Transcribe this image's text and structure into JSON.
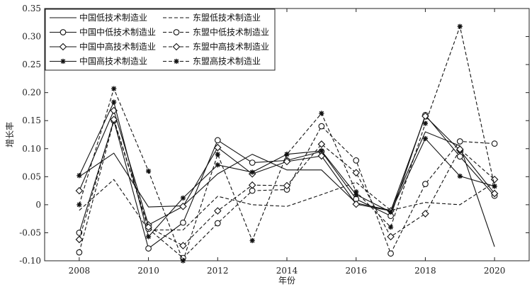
{
  "chart_data": {
    "type": "line",
    "title": "",
    "xlabel": "年份",
    "ylabel": "增长率",
    "xlim": [
      2007,
      2021
    ],
    "ylim": [
      -0.1,
      0.35
    ],
    "xticks": [
      2008,
      2010,
      2012,
      2014,
      2016,
      2018,
      2020
    ],
    "yticks": [
      -0.1,
      -0.05,
      0,
      0.05,
      0.1,
      0.15,
      0.2,
      0.25,
      0.3,
      0.35
    ],
    "ytick_labels": [
      "-0.10",
      "-0.05",
      "0",
      "0.05",
      "0.10",
      "0.15",
      "0.20",
      "0.25",
      "0.30",
      "0.35"
    ],
    "grid": false,
    "legend_position": "top-left",
    "x": [
      2008,
      2009,
      2010,
      2011,
      2012,
      2013,
      2014,
      2015,
      2016,
      2017,
      2018,
      2019,
      2020
    ],
    "series": [
      {
        "name": "中国低技术制造业",
        "dash": "solid",
        "marker": "none",
        "values": [
          0.05,
          0.092,
          -0.004,
          -0.002,
          0.055,
          0.09,
          0.062,
          0.062,
          0.003,
          -0.01,
          0.13,
          0.105,
          -0.075
        ]
      },
      {
        "name": "中国中低技术制造业",
        "dash": "solid",
        "marker": "circle",
        "values": [
          -0.05,
          0.15,
          -0.078,
          -0.032,
          0.115,
          0.075,
          0.079,
          0.095,
          0.01,
          -0.02,
          0.16,
          0.086,
          0.016
        ]
      },
      {
        "name": "中国中高技术制造业",
        "dash": "solid",
        "marker": "diamond",
        "values": [
          0.025,
          0.168,
          -0.036,
          -0.003,
          0.102,
          0.055,
          0.077,
          0.087,
          0.001,
          -0.011,
          0.158,
          0.097,
          0.02
        ]
      },
      {
        "name": "中国高技术制造业",
        "dash": "solid",
        "marker": "star",
        "values": [
          0.052,
          0.183,
          -0.057,
          0.012,
          0.071,
          0.058,
          0.09,
          0.096,
          0.018,
          -0.013,
          0.118,
          0.051,
          0.033
        ]
      },
      {
        "name": "东盟低技术制造业",
        "dash": "dashed",
        "marker": "none",
        "values": [
          -0.01,
          0.045,
          -0.045,
          -0.045,
          0.015,
          0.0,
          -0.003,
          0.018,
          0.04,
          -0.01,
          0.004,
          0.0,
          0.04
        ]
      },
      {
        "name": "东盟中低技术制造业",
        "dash": "dashed",
        "marker": "circle",
        "values": [
          -0.085,
          0.15,
          -0.043,
          -0.095,
          -0.033,
          0.025,
          0.027,
          0.14,
          0.079,
          -0.087,
          0.037,
          0.113,
          0.109
        ]
      },
      {
        "name": "东盟中高技术制造业",
        "dash": "dashed",
        "marker": "diamond",
        "values": [
          -0.062,
          0.152,
          -0.04,
          -0.073,
          -0.011,
          0.035,
          0.034,
          0.108,
          0.057,
          -0.057,
          -0.016,
          0.099,
          0.045
        ]
      },
      {
        "name": "东盟高技术制造业",
        "dash": "dashed",
        "marker": "star",
        "values": [
          0.0,
          0.207,
          0.06,
          -0.1,
          0.09,
          -0.064,
          0.09,
          0.163,
          0.023,
          -0.04,
          0.145,
          0.318,
          0.033
        ]
      }
    ]
  }
}
